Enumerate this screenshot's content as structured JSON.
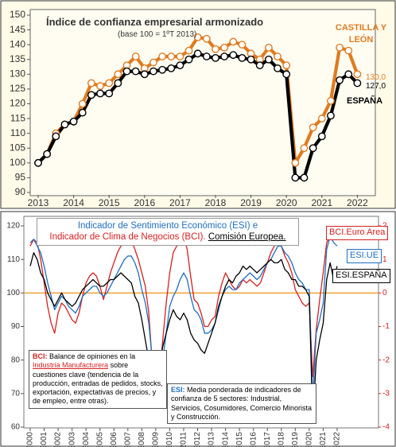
{
  "chart_data": [
    {
      "type": "line",
      "title": "Índice de confianza empresarial armonizado",
      "subtitle": "(base 100 = 1ºT 2013)",
      "categories": [
        "2013",
        null,
        null,
        null,
        "2014",
        null,
        null,
        null,
        "2015",
        null,
        null,
        null,
        "2016",
        null,
        null,
        null,
        "2017",
        null,
        null,
        null,
        "2018",
        null,
        null,
        null,
        "2019",
        null,
        null,
        null,
        "2020",
        null,
        null,
        null,
        "2021",
        null,
        null,
        null,
        "2022"
      ],
      "ylim": [
        90,
        150
      ],
      "yticks": [
        90,
        95,
        100,
        105,
        110,
        115,
        120,
        125,
        130,
        135,
        140,
        145,
        150
      ],
      "grid": false,
      "markers": true,
      "series": [
        {
          "name": "CASTILLA Y LEÓN",
          "color": "#e07b20",
          "end_label": "130,0",
          "values": [
            100,
            103,
            110,
            113,
            114,
            120,
            127,
            126,
            127,
            130,
            133,
            136,
            132,
            134,
            136,
            136,
            136,
            138,
            142.5,
            142,
            138.5,
            139,
            141,
            140,
            137,
            135,
            139,
            136,
            133,
            100,
            105,
            112,
            115,
            121,
            139,
            138,
            130
          ]
        },
        {
          "name": "ESPAÑA",
          "color": "#000000",
          "end_label": "127,0",
          "values": [
            100,
            103,
            109,
            113,
            114,
            117,
            123,
            123.5,
            123.5,
            127,
            131,
            131,
            130,
            131,
            131.5,
            132,
            133,
            135,
            137,
            136,
            135.5,
            136,
            136.5,
            135.5,
            135,
            133,
            135,
            132,
            130,
            95,
            95,
            105,
            109,
            116,
            128,
            130,
            127
          ]
        }
      ]
    },
    {
      "type": "line",
      "title_line1": "Indicador de Sentimiento Económico (ESI) e",
      "title_line2_red": "Indicador de Clima de Negocios (BCI).",
      "title_line2_source": "Comisión Europea.",
      "categories": [
        "2000",
        null,
        null,
        null,
        "2001",
        null,
        null,
        null,
        "2002",
        null,
        null,
        null,
        "2003",
        null,
        null,
        null,
        "2004",
        null,
        null,
        null,
        "2005",
        null,
        null,
        null,
        "2006",
        null,
        null,
        null,
        "2007",
        null,
        null,
        null,
        "2008",
        null,
        null,
        null,
        "2009",
        null,
        null,
        null,
        "2010",
        null,
        null,
        null,
        "2011",
        null,
        null,
        null,
        "2012",
        null,
        null,
        null,
        "2013",
        null,
        null,
        null,
        "2014",
        null,
        null,
        null,
        "2015",
        null,
        null,
        null,
        "2016",
        null,
        null,
        null,
        "2017",
        null,
        null,
        null,
        "2018",
        null,
        null,
        null,
        "2019",
        null,
        null,
        null,
        "2020",
        null,
        null,
        null,
        "2021",
        null,
        null,
        null,
        "2022"
      ],
      "ylim": [
        60,
        120
      ],
      "yticks": [
        60,
        70,
        80,
        90,
        100,
        110,
        120
      ],
      "y2lim": [
        -4,
        2
      ],
      "y2ticks": [
        -4,
        -3,
        -2,
        -1,
        0,
        1,
        2
      ],
      "reference_value": 100,
      "reference_color": "#f0a030",
      "grid": false,
      "markers": false,
      "series": [
        {
          "name": "BCI.Euro Area",
          "color": "#d62020",
          "axis": "y2",
          "values": [
            1.4,
            1.6,
            1.5,
            1.0,
            0.3,
            -0.4,
            -0.9,
            -1.2,
            -0.6,
            -0.3,
            -0.4,
            -0.6,
            -0.8,
            -0.9,
            -0.6,
            -0.1,
            0.3,
            0.5,
            0.6,
            0.5,
            0.2,
            -0.2,
            0.2,
            0.6,
            0.9,
            1.2,
            1.4,
            1.5,
            1.6,
            1.6,
            1.3,
            1.0,
            0.6,
            0.2,
            -0.6,
            -2.1,
            -3.2,
            -2.6,
            -1.4,
            -0.3,
            0.6,
            1.2,
            1.4,
            1.6,
            1.7,
            1.3,
            0.5,
            -0.2,
            -0.3,
            -0.6,
            -1.0,
            -1.0,
            -0.8,
            -0.7,
            -0.1,
            0.3,
            0.6,
            0.4,
            0.2,
            0.1,
            0.2,
            0.4,
            0.3,
            0.4,
            0.3,
            0.2,
            0.3,
            0.6,
            0.9,
            1.2,
            1.4,
            1.6,
            1.4,
            1.1,
            0.9,
            0.6,
            0.1,
            -0.1,
            -0.3,
            -0.4,
            -0.3,
            -2.5,
            -1.1,
            -0.2,
            0.6,
            1.5,
            1.7,
            1.8,
            1.8
          ]
        },
        {
          "name": "ESI.UE",
          "color": "#1f6fc0",
          "values": [
            115,
            116,
            114,
            112,
            108,
            103,
            99,
            95,
            97,
            99,
            98,
            96,
            95,
            94,
            96,
            99,
            100,
            101,
            102,
            102,
            100,
            99,
            100,
            102,
            104,
            106,
            108,
            110,
            111,
            111,
            109,
            106,
            101,
            97,
            91,
            80,
            70,
            73,
            80,
            88,
            96,
            99,
            101,
            104,
            106,
            104,
            99,
            95,
            94,
            92,
            88,
            88,
            89,
            91,
            95,
            99,
            101,
            102,
            101,
            101,
            103,
            104,
            105,
            106,
            105,
            104,
            105,
            107,
            109,
            110,
            112,
            114,
            114,
            112,
            111,
            109,
            106,
            104,
            103,
            101,
            101,
            68,
            88,
            92,
            97,
            113,
            117,
            115,
            114
          ]
        },
        {
          "name": "ESI.ESPAÑA",
          "color": "#000000",
          "values": [
            108,
            112,
            110,
            106,
            104,
            100,
            98,
            96,
            98,
            100,
            98,
            97,
            96,
            97,
            99,
            101,
            102,
            103,
            104,
            103,
            102,
            102,
            103,
            104,
            104,
            105,
            106,
            105,
            104,
            103,
            99,
            97,
            92,
            86,
            80,
            75,
            72,
            78,
            84,
            88,
            92,
            95,
            93,
            92,
            94,
            92,
            88,
            86,
            85,
            83,
            82,
            85,
            88,
            91,
            96,
            99,
            102,
            104,
            103,
            105,
            106,
            108,
            107,
            108,
            107,
            106,
            107,
            108,
            109,
            110,
            109,
            109,
            110,
            107,
            106,
            104,
            104,
            102,
            102,
            101,
            99,
            62,
            80,
            86,
            91,
            104,
            109,
            104,
            108
          ]
        }
      ],
      "note_bci": {
        "head": "BCI:",
        "intro": "Balance de opiniones en la",
        "link": "Industria Manufacturera",
        "body": "sobre cuestiones clave (tendencia de la producción, entradas de pedidos, stocks, exportación, expectativas de precios, y de empleo, entre otras)."
      },
      "note_esi": {
        "head": "ESI:",
        "body": "Media ponderada de indicadores de confianza de 5 sectores: Industrial, Servicios, Cosumidores, Comercio Minorista y Construcción."
      }
    }
  ]
}
